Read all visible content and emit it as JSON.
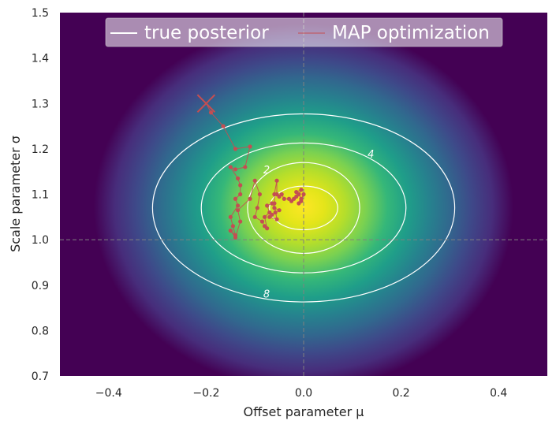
{
  "chart_data": {
    "type": "heatmap",
    "title": "",
    "xlabel": "Offset parameter μ",
    "ylabel": "Scale parameter σ",
    "xlim": [
      -0.5,
      0.5
    ],
    "ylim": [
      0.7,
      1.5
    ],
    "x_ticks": [
      "−0.4",
      "−0.2",
      "0.0",
      "0.2",
      "0.4"
    ],
    "x_tick_values": [
      -0.4,
      -0.2,
      0.0,
      0.2,
      0.4
    ],
    "y_ticks": [
      "0.7",
      "0.8",
      "0.9",
      "1.0",
      "1.1",
      "1.2",
      "1.3",
      "1.4",
      "1.5"
    ],
    "y_tick_values": [
      0.7,
      0.8,
      0.9,
      1.0,
      1.1,
      1.2,
      1.3,
      1.4,
      1.5
    ],
    "colormap": "viridis",
    "grid": false,
    "reference_lines": {
      "x": 0.0,
      "y": 1.0,
      "style": "dashed",
      "color": "#808080"
    },
    "posterior_peak": {
      "mu": 0.0,
      "sigma": 1.07
    },
    "contours": [
      {
        "label": "",
        "rx": 0.07,
        "ry": 0.048
      },
      {
        "label": "",
        "rx": 0.115,
        "ry": 0.1
      },
      {
        "label": "2",
        "rx": 0.21,
        "ry": 0.143
      },
      {
        "label": "4",
        "rx": 0.31,
        "ry": 0.207
      },
      {
        "label": "8",
        "rx": null,
        "ry": null
      }
    ],
    "contour_labels": [
      {
        "text": "2",
        "mu": -0.076,
        "sigma": 1.153
      },
      {
        "text": "4",
        "mu": 0.138,
        "sigma": 1.188
      },
      {
        "text": "8",
        "mu": -0.076,
        "sigma": 0.88
      }
    ],
    "legend": {
      "placement": "top",
      "entries": [
        {
          "label": "true posterior",
          "color": "#ffffff"
        },
        {
          "label": "MAP optimization",
          "color": "#c44e52"
        }
      ]
    },
    "map_start": {
      "mu": -0.2,
      "sigma": 1.3,
      "marker": "x",
      "color": "#c44e52"
    },
    "map_path": {
      "color": "#c44e52",
      "points": [
        [
          -0.2,
          1.3
        ],
        [
          -0.19,
          1.28
        ],
        [
          -0.165,
          1.25
        ],
        [
          -0.14,
          1.2
        ],
        [
          -0.11,
          1.205
        ],
        [
          -0.12,
          1.16
        ],
        [
          -0.14,
          1.155
        ],
        [
          -0.15,
          1.16
        ],
        [
          -0.135,
          1.135
        ],
        [
          -0.13,
          1.12
        ],
        [
          -0.13,
          1.1
        ],
        [
          -0.14,
          1.09
        ],
        [
          -0.135,
          1.075
        ],
        [
          -0.15,
          1.05
        ],
        [
          -0.145,
          1.03
        ],
        [
          -0.14,
          1.01
        ],
        [
          -0.15,
          1.02
        ],
        [
          -0.14,
          1.005
        ],
        [
          -0.13,
          1.04
        ],
        [
          -0.135,
          1.065
        ],
        [
          -0.11,
          1.09
        ],
        [
          -0.1,
          1.13
        ],
        [
          -0.09,
          1.1
        ],
        [
          -0.095,
          1.07
        ],
        [
          -0.1,
          1.05
        ],
        [
          -0.085,
          1.04
        ],
        [
          -0.08,
          1.03
        ],
        [
          -0.075,
          1.025
        ],
        [
          -0.08,
          1.05
        ],
        [
          -0.07,
          1.06
        ],
        [
          -0.075,
          1.075
        ],
        [
          -0.065,
          1.08
        ],
        [
          -0.06,
          1.07
        ],
        [
          -0.05,
          1.065
        ],
        [
          -0.058,
          1.06
        ],
        [
          -0.065,
          1.055
        ],
        [
          -0.07,
          1.05
        ],
        [
          -0.055,
          1.045
        ],
        [
          -0.06,
          1.08
        ],
        [
          -0.06,
          1.1
        ],
        [
          -0.055,
          1.13
        ],
        [
          -0.055,
          1.1
        ],
        [
          -0.05,
          1.095
        ],
        [
          -0.045,
          1.1
        ],
        [
          -0.04,
          1.09
        ],
        [
          -0.03,
          1.09
        ],
        [
          -0.025,
          1.085
        ],
        [
          -0.02,
          1.09
        ],
        [
          -0.015,
          1.095
        ],
        [
          -0.01,
          1.1
        ],
        [
          -0.015,
          1.105
        ],
        [
          -0.005,
          1.11
        ],
        [
          -0.01,
          1.1
        ],
        [
          -0.005,
          1.09
        ],
        [
          0.0,
          1.1
        ],
        [
          -0.005,
          1.085
        ],
        [
          -0.01,
          1.08
        ]
      ]
    }
  }
}
